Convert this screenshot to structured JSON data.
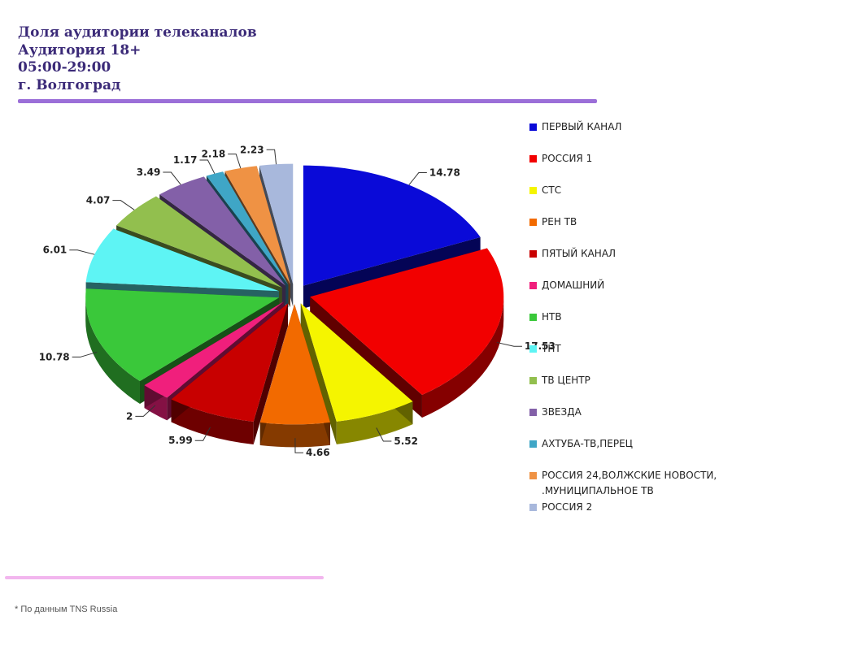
{
  "header": {
    "line1": "Доля аудитории телеканалов",
    "line2": "Аудитория 18+",
    "line3": "05:00-29:00",
    "line4": "г. Волгоград"
  },
  "footnote": "* По данным TNS Russia",
  "chart_data": {
    "type": "pie",
    "style": "3d-exploded",
    "legend_position": "right",
    "labels": [
      "ПЕРВЫЙ КАНАЛ",
      "РОССИЯ 1",
      "СТС",
      "РЕН ТВ",
      "ПЯТЫЙ КАНАЛ",
      "ДОМАШНИЙ",
      "НТВ",
      "ТНТ",
      "ТВ ЦЕНТР",
      "ЗВЕЗДА",
      "АХТУБА-ТВ,ПЕРЕЦ",
      "РОССИЯ 24,ВОЛЖСКИЕ НОВОСТИ,\n.МУНИЦИПАЛЬНОЕ ТВ",
      "РОССИЯ 2"
    ],
    "values": [
      14.78,
      17.53,
      5.52,
      4.66,
      5.99,
      2,
      10.78,
      6.01,
      4.07,
      3.49,
      1.17,
      2.18,
      2.23
    ],
    "value_labels": [
      "14.78",
      "17.53",
      "5.52",
      "4.66",
      "5.99",
      "2",
      "10.78",
      "6.01",
      "4.07",
      "3.49",
      "1.17",
      "2.18",
      "2.23"
    ],
    "colors": [
      "#0a0ad8",
      "#f20000",
      "#f5f500",
      "#f26a00",
      "#c80000",
      "#f01f7c",
      "#3ac83a",
      "#5ef4f4",
      "#92bf4e",
      "#8360a8",
      "#3fa6c6",
      "#ef9244",
      "#a8b8dc"
    ]
  }
}
